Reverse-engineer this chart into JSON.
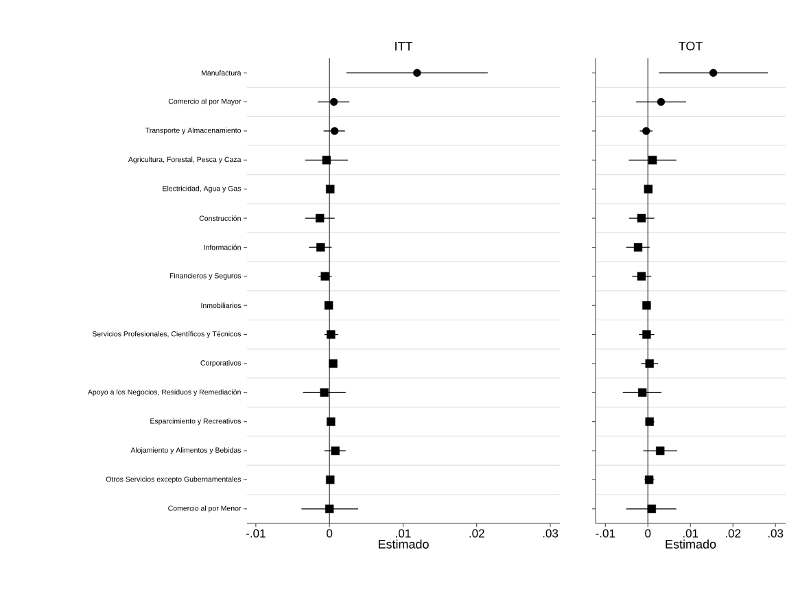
{
  "chart_data": [
    {
      "type": "scatter",
      "orientation": "horizontal",
      "title": "ITT",
      "xlabel": "Estimado",
      "categories": [
        "Manufactura",
        "Comercio al por Mayor",
        "Transporte y Almacenamiento",
        "Agricultura, Forestal, Pesca y Caza",
        "Electricidad, Agua y Gas",
        "Construcción",
        "Información",
        "Financieros y Seguros",
        "Inmobiliarios",
        "Servicios Profesionales, Científicos y Técnicos",
        "Corporativos",
        "Apoyo a los Negocios, Residuos y Remediación",
        "Esparcimiento y Recreativos",
        "Alojamiento y Alimentos y Bebidas",
        "Otros Servicios excepto Gubernamentales",
        "Comercio al por Menor"
      ],
      "xlim": [
        -0.0112,
        0.0313
      ],
      "xticks": [
        {
          "value": -0.01,
          "label": "-.01"
        },
        0,
        {
          "value": 0.01,
          "label": ".01"
        },
        {
          "value": 0.02,
          "label": ".02"
        },
        {
          "value": 0.03,
          "label": ".03"
        }
      ],
      "grid": "y",
      "ref_lines": [
        {
          "axis": "x",
          "value": 0,
          "color": "#333333"
        }
      ],
      "series": [
        {
          "color": "#000000",
          "marker": "circle",
          "values": [
            0.0119,
            0.0006,
            0.0007,
            null,
            null,
            null,
            null,
            null,
            null,
            null,
            null,
            null,
            null,
            null,
            null,
            null
          ],
          "errors": [
            [
              0.0023,
              0.0215
            ],
            [
              -0.0016,
              0.0027
            ],
            [
              -0.0008,
              0.0021
            ],
            null,
            null,
            null,
            null,
            null,
            null,
            null,
            null,
            null,
            null,
            null,
            null,
            null
          ]
        },
        {
          "color": "#000000",
          "marker": "square",
          "values": [
            null,
            null,
            null,
            -0.0004,
            0.0001,
            -0.0013,
            -0.0012,
            -0.0006,
            -0.0001,
            0.0002,
            0.0005,
            -0.0007,
            0.0002,
            0.0008,
            0.0001,
            0.0
          ],
          "errors": [
            null,
            null,
            null,
            [
              -0.0033,
              0.0025
            ],
            null,
            [
              -0.0033,
              0.0007
            ],
            [
              -0.0028,
              0.0003
            ],
            [
              -0.0015,
              0.0003
            ],
            null,
            [
              -0.0007,
              0.0012
            ],
            null,
            [
              -0.0036,
              0.0022
            ],
            null,
            [
              -0.0007,
              0.0022
            ],
            null,
            [
              -0.0038,
              0.0039
            ]
          ]
        }
      ]
    },
    {
      "type": "scatter",
      "orientation": "horizontal",
      "title": "TOT",
      "xlabel": "Estimado",
      "categories": [
        null,
        null,
        null,
        null,
        null,
        null,
        null,
        null,
        null,
        null,
        null,
        null,
        null,
        null,
        null,
        null
      ],
      "xlim": [
        -0.0123,
        0.0324
      ],
      "xticks": [
        {
          "value": -0.01,
          "label": "-.01"
        },
        0,
        {
          "value": 0.01,
          "label": ".01"
        },
        {
          "value": 0.02,
          "label": ".02"
        },
        {
          "value": 0.03,
          "label": ".03"
        }
      ],
      "grid": "y",
      "ref_lines": [
        {
          "axis": "x",
          "value": 0,
          "color": "#333333"
        }
      ],
      "series": [
        {
          "color": "#000000",
          "marker": "circle",
          "values": [
            0.0154,
            0.0031,
            -0.0004,
            null,
            null,
            null,
            null,
            null,
            null,
            null,
            null,
            null,
            null,
            null,
            null,
            null
          ],
          "errors": [
            [
              0.0026,
              0.0282
            ],
            [
              -0.0028,
              0.009
            ],
            [
              -0.0019,
              0.0011
            ],
            null,
            null,
            null,
            null,
            null,
            null,
            null,
            null,
            null,
            null,
            null,
            null,
            null
          ]
        },
        {
          "color": "#000000",
          "marker": "square",
          "values": [
            null,
            null,
            null,
            0.0011,
            0.0001,
            -0.0015,
            -0.0023,
            -0.0015,
            -0.0003,
            -0.0003,
            0.0004,
            -0.0013,
            0.0004,
            0.0029,
            0.0003,
            0.0009
          ],
          "errors": [
            null,
            null,
            null,
            [
              -0.0045,
              0.0067
            ],
            null,
            [
              -0.0044,
              0.0015
            ],
            [
              -0.0051,
              0.0004
            ],
            [
              -0.0037,
              0.0008
            ],
            null,
            [
              -0.0021,
              0.0015
            ],
            [
              -0.0016,
              0.0024
            ],
            [
              -0.0059,
              0.0032
            ],
            [
              -0.0006,
              0.0015
            ],
            [
              -0.0011,
              0.0069
            ],
            [
              -0.0008,
              0.0015
            ],
            [
              -0.0051,
              0.0067
            ]
          ]
        }
      ]
    }
  ]
}
